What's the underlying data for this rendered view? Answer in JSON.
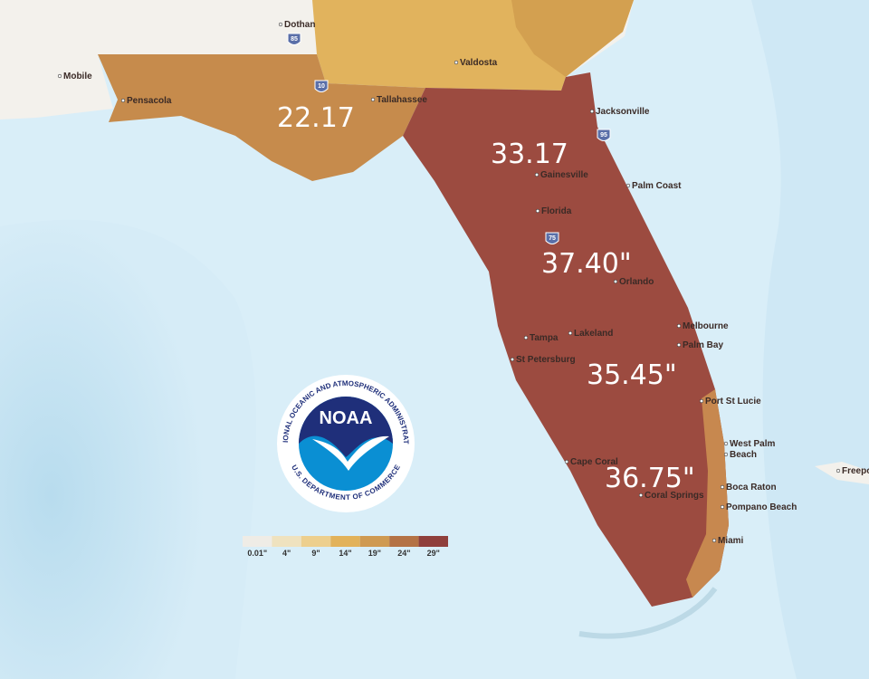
{
  "region_values": [
    "22.17",
    "33.17",
    "37.40\"",
    "35.45\"",
    "36.75\""
  ],
  "cities": [
    "Dothan",
    "Mobile",
    "Pensacola",
    "Tallahassee",
    "Valdosta",
    "Jacksonville",
    "Gainesville",
    "Palm Coast",
    "Florida",
    "Orlando",
    "Melbourne",
    "Palm Bay",
    "Lakeland",
    "Tampa",
    "St Petersburg",
    "Port St Lucie",
    "West Palm",
    "Beach",
    "Boca Raton",
    "Pompano Beach",
    "Cape Coral",
    "Coral Springs",
    "Miami",
    "Freepo"
  ],
  "highways": [
    "85",
    "10",
    "75",
    "95"
  ],
  "legend": {
    "labels": [
      "0.01\"",
      "4\"",
      "9\"",
      "14\"",
      "19\"",
      "24\"",
      "29\""
    ],
    "colors": [
      "#efece6",
      "#efe2bf",
      "#edcf8e",
      "#e2b25a",
      "#cf9a52",
      "#b47245",
      "#8f3f3c"
    ]
  },
  "logo": {
    "abbr": "NOAA",
    "ring_top": "NATIONAL OCEANIC AND ATMOSPHERIC ADMINISTRATION",
    "ring_bottom": "U.S. DEPARTMENT OF COMMERCE"
  }
}
